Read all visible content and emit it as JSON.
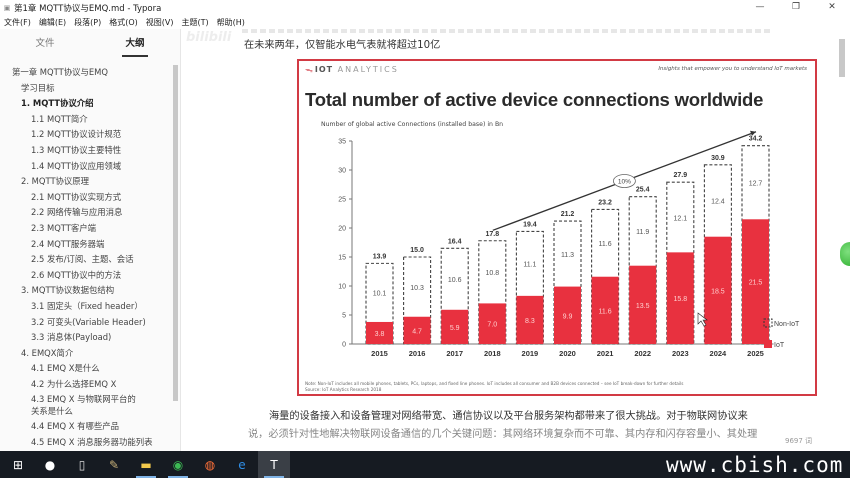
{
  "window": {
    "title": "第1章 MQTT协议与EMQ.md - Typora",
    "controls": [
      "minimize",
      "maximize",
      "close"
    ]
  },
  "menubar": {
    "items": [
      "文件(F)",
      "编辑(E)",
      "段落(P)",
      "格式(O)",
      "视图(V)",
      "主题(T)",
      "帮助(H)"
    ]
  },
  "sidebar": {
    "tabs": [
      {
        "label": "文件",
        "active": false
      },
      {
        "label": "大纲",
        "active": true
      }
    ],
    "outline": [
      {
        "label": "第一章 MQTT协议与EMQ",
        "level": 1,
        "bold": false
      },
      {
        "label": "学习目标",
        "level": 2,
        "bold": false
      },
      {
        "label": "1. MQTT协议介绍",
        "level": 2,
        "bold": true
      },
      {
        "label": "1.1 MQTT简介",
        "level": 3,
        "bold": false
      },
      {
        "label": "1.2 MQTT协议设计规范",
        "level": 3,
        "bold": false
      },
      {
        "label": "1.3 MQTT协议主要特性",
        "level": 3,
        "bold": false
      },
      {
        "label": "1.4 MQTT协议应用领域",
        "level": 3,
        "bold": false
      },
      {
        "label": "2. MQTT协议原理",
        "level": 2,
        "bold": false
      },
      {
        "label": "2.1 MQTT协议实现方式",
        "level": 3,
        "bold": false
      },
      {
        "label": "2.2 网络传输与应用消息",
        "level": 3,
        "bold": false
      },
      {
        "label": "2.3 MQTT客户端",
        "level": 3,
        "bold": false
      },
      {
        "label": "2.4 MQTT服务器端",
        "level": 3,
        "bold": false
      },
      {
        "label": "2.5 发布/订阅、主题、会话",
        "level": 3,
        "bold": false
      },
      {
        "label": "2.6 MQTT协议中的方法",
        "level": 3,
        "bold": false
      },
      {
        "label": "3. MQTT协议数据包结构",
        "level": 2,
        "bold": false
      },
      {
        "label": "3.1 固定头（Fixed header）",
        "level": 3,
        "bold": false
      },
      {
        "label": "3.2 可变头(Variable Header)",
        "level": 3,
        "bold": false
      },
      {
        "label": "3.3 消息体(Payload)",
        "level": 3,
        "bold": false
      },
      {
        "label": "4. EMQX简介",
        "level": 2,
        "bold": false
      },
      {
        "label": "4.1 EMQ X是什么",
        "level": 3,
        "bold": false
      },
      {
        "label": "4.2 为什么选择EMQ X",
        "level": 3,
        "bold": false
      },
      {
        "label": "4.3 EMQ X 与物联网平台的关系是什么",
        "level": 3,
        "bold": false,
        "wrap": true
      },
      {
        "label": "4.4 EMQ X 有哪些产品",
        "level": 3,
        "bold": false
      },
      {
        "label": "4.5 EMQ X 消息服务器功能列表",
        "level": 3,
        "bold": false
      }
    ],
    "footer": {
      "prev_icon": "<",
      "source_icon": "</>"
    }
  },
  "editor": {
    "para_top": "在未来两年，仅智能水电气表就将超过10亿",
    "para_bottom_1": "海量的设备接入和设备管理对网络带宽、通信协议以及平台服务架构都带来了很大挑战。对于物联网协议来",
    "para_bottom_2": "说，必须针对性地解决物联网设备通信的几个关键问题：其网络环境复杂而不可靠、其内存和闪存容量小、其处理",
    "word_count": "9697 词"
  },
  "figure": {
    "brand_logo": "ᯓ",
    "brand_bold": "IOT",
    "brand_rest": " ANALYTICS",
    "tagline": "Insights that empower you to understand IoT markets",
    "note": "Note: Non-IoT includes all mobile phones, tablets, PCs, laptops, and fixed line phones. IoT includes all consumer and B2B devices connected – see IoT break-down for further details",
    "source": "Source: IoT Analytics Research 2018"
  },
  "chart_data": {
    "type": "bar",
    "stacked": true,
    "title": "Total number of active device connections worldwide",
    "subtitle": "Number of global active Connections (installed base) in Bn",
    "categories": [
      "2015",
      "2016",
      "2017",
      "2018",
      "2019",
      "2020",
      "2021",
      "2022",
      "2023",
      "2024",
      "2025"
    ],
    "series": [
      {
        "name": "IoT",
        "color": "#e8313f",
        "values": [
          3.8,
          4.7,
          5.9,
          7.0,
          8.3,
          9.9,
          11.6,
          13.5,
          15.8,
          18.5,
          21.5
        ]
      },
      {
        "name": "Non-IoT",
        "style": "dashed-outline",
        "values": [
          10.1,
          10.3,
          10.6,
          10.8,
          11.1,
          11.3,
          11.6,
          11.9,
          12.1,
          12.4,
          12.7
        ]
      }
    ],
    "totals": [
      13.9,
      15.0,
      16.4,
      17.8,
      19.4,
      21.2,
      23.2,
      25.4,
      27.9,
      30.9,
      34.2
    ],
    "yticks": [
      0,
      5,
      10,
      15,
      20,
      25,
      30,
      35
    ],
    "ylim": [
      0,
      35
    ],
    "annotation": {
      "label": "10%",
      "type": "CAGR arrow from 2018 to 2025"
    },
    "legend": [
      {
        "label": "Non-IoT",
        "style": "dashed"
      },
      {
        "label": "IoT",
        "color": "#e8313f"
      }
    ],
    "legend_position": "right-bottom",
    "grid": false
  },
  "taskbar": {
    "items": [
      {
        "name": "start",
        "glyph": "⊞"
      },
      {
        "name": "cortana",
        "glyph": "●"
      },
      {
        "name": "task-view",
        "glyph": "▯"
      },
      {
        "name": "app-paint",
        "glyph": "✎"
      },
      {
        "name": "file-explorer",
        "glyph": "▬"
      },
      {
        "name": "chrome",
        "glyph": "◉"
      },
      {
        "name": "firefox",
        "glyph": "◍"
      },
      {
        "name": "edge",
        "glyph": "e"
      },
      {
        "name": "typora",
        "glyph": "T"
      }
    ]
  },
  "watermark": "www.cbish.com",
  "overlay": {
    "bilibili": "bilibili"
  }
}
